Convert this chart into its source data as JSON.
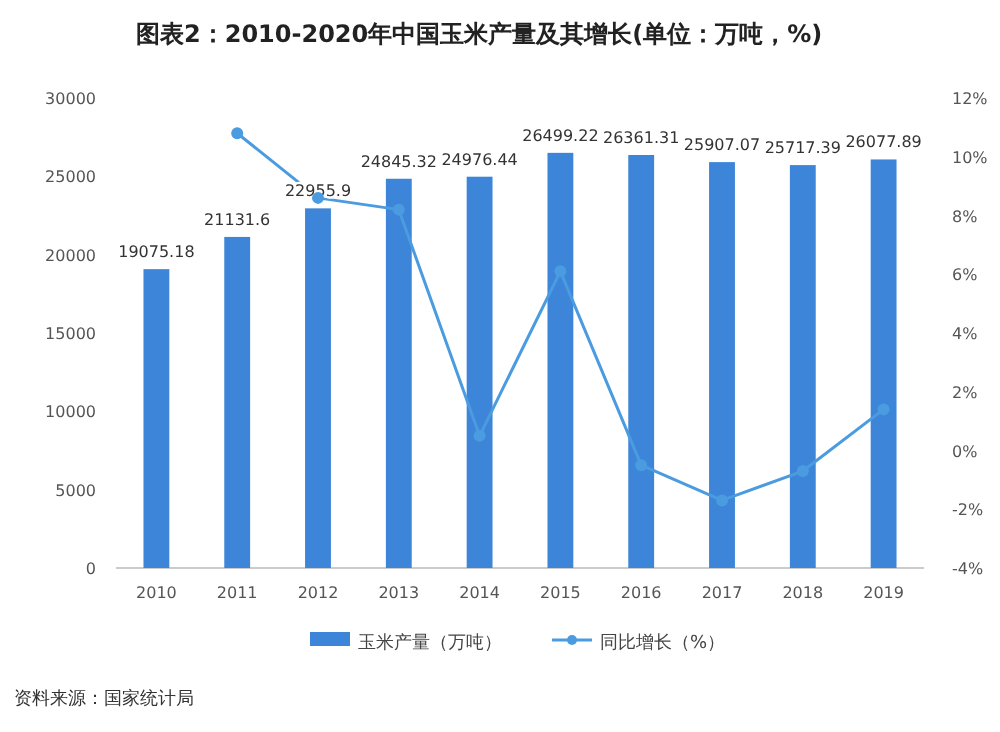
{
  "chart_data": {
    "type": "bar",
    "title": "图表2：2010-2020年中国玉米产量及其增长(单位：万吨，%)",
    "categories": [
      "2010",
      "2011",
      "2012",
      "2013",
      "2014",
      "2015",
      "2016",
      "2017",
      "2018",
      "2019"
    ],
    "series": [
      {
        "name": "玉米产量（万吨）",
        "color": "#3d85d8",
        "values": [
          19075.18,
          21131.6,
          22955.9,
          24845.32,
          24976.44,
          26499.22,
          26361.31,
          25907.07,
          25717.39,
          26077.89
        ],
        "value_labels": [
          "19075.18",
          "21131.6",
          "22955.9",
          "24845.32",
          "24976.44",
          "26499.22",
          "26361.31",
          "25907.07",
          "25717.39",
          "26077.89"
        ]
      },
      {
        "name": "同比增长（%）",
        "type": "line",
        "axis": "y2",
        "color": "#4a9be0",
        "marker": "circle",
        "values": [
          null,
          10.8,
          8.6,
          8.2,
          0.5,
          6.1,
          -0.5,
          -1.7,
          -0.7,
          1.4
        ]
      }
    ],
    "ylim": [
      0,
      30000
    ],
    "yticks": [
      0,
      5000,
      10000,
      15000,
      20000,
      25000,
      30000
    ],
    "y2lim": [
      -4,
      12
    ],
    "y2ticks": [
      {
        "value": -4,
        "label": "-4%"
      },
      {
        "value": -2,
        "label": "-2%"
      },
      {
        "value": 0,
        "label": "0%"
      },
      {
        "value": 2,
        "label": "2%"
      },
      {
        "value": 4,
        "label": "4%"
      },
      {
        "value": 6,
        "label": "6%"
      },
      {
        "value": 8,
        "label": "8%"
      },
      {
        "value": 10,
        "label": "10%"
      },
      {
        "value": 12,
        "label": "12%"
      }
    ],
    "legend": "bottom",
    "grid": false,
    "annotations": [
      "资料来源：国家统计局"
    ]
  }
}
